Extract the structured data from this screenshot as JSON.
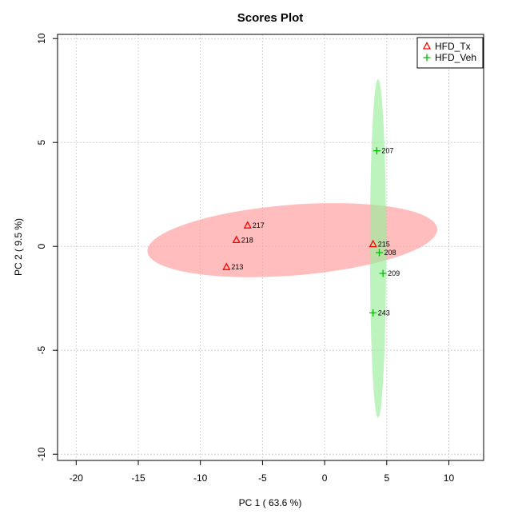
{
  "chart_data": {
    "type": "scatter",
    "title": "Scores Plot",
    "xlabel": "PC 1 ( 63.6 %)",
    "ylabel": "PC 2 ( 9.5 %)",
    "xlim": [
      -21.5,
      12.8
    ],
    "ylim": [
      -10.3,
      10.2
    ],
    "x_ticks": [
      -20,
      -15,
      -10,
      -5,
      0,
      5,
      10
    ],
    "y_ticks": [
      -10,
      -5,
      0,
      5,
      10
    ],
    "grid": true,
    "legend_position": "top-right",
    "series": [
      {
        "name": "HFD_Tx",
        "marker": "triangle",
        "color": "#ff0000",
        "ellipse_color": "#ff9999",
        "ellipse": {
          "cx": -2.6,
          "cy": 0.3,
          "rx": 11.7,
          "ry": 1.7,
          "angle_deg": 4.5
        },
        "points": [
          {
            "label": "217",
            "x": -6.2,
            "y": 1.0
          },
          {
            "label": "218",
            "x": -7.1,
            "y": 0.3
          },
          {
            "label": "213",
            "x": -7.9,
            "y": -1.0
          },
          {
            "label": "215",
            "x": 3.9,
            "y": 0.1
          }
        ]
      },
      {
        "name": "HFD_Veh",
        "marker": "plus",
        "color": "#00bb00",
        "ellipse_color": "#99ee99",
        "ellipse": {
          "cx": 4.3,
          "cy": -0.1,
          "rx": 0.65,
          "ry": 8.15,
          "angle_deg": 0
        },
        "points": [
          {
            "label": "207",
            "x": 4.2,
            "y": 4.6
          },
          {
            "label": "208",
            "x": 4.4,
            "y": -0.3
          },
          {
            "label": "209",
            "x": 4.7,
            "y": -1.3
          },
          {
            "label": "243",
            "x": 3.9,
            "y": -3.2
          }
        ]
      }
    ]
  }
}
